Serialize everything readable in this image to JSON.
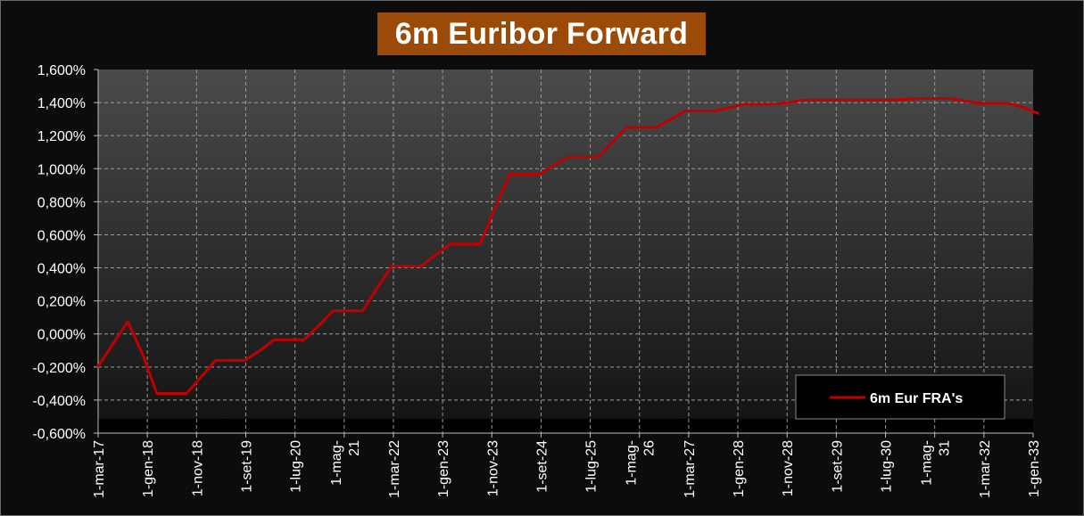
{
  "title": "6m Euribor Forward",
  "chart_data": {
    "type": "line",
    "title": "6m Euribor Forward",
    "xlabel": "",
    "ylabel": "",
    "ylim": [
      -0.6,
      1.6
    ],
    "yticks": [
      "1,600%",
      "1,400%",
      "1,200%",
      "1,000%",
      "0,800%",
      "0,600%",
      "0,400%",
      "0,200%",
      "0,000%",
      "-0,200%",
      "-0,400%",
      "-0,600%"
    ],
    "xticks": [
      [
        "1-mar-17"
      ],
      [
        "1-gen-18"
      ],
      [
        "1-nov-18"
      ],
      [
        "1-set-19"
      ],
      [
        "1-lug-20"
      ],
      [
        "1-mag-",
        "21"
      ],
      [
        "1-mar-22"
      ],
      [
        "1-gen-23"
      ],
      [
        "1-nov-23"
      ],
      [
        "1-set-24"
      ],
      [
        "1-lug-25"
      ],
      [
        "1-mag-",
        "26"
      ],
      [
        "1-mar-27"
      ],
      [
        "1-gen-28"
      ],
      [
        "1-nov-28"
      ],
      [
        "1-set-29"
      ],
      [
        "1-lug-30"
      ],
      [
        "1-mag-",
        "31"
      ],
      [
        "1-mar-32"
      ],
      [
        "1-gen-33"
      ]
    ],
    "grid": true,
    "legend_position": "bottom-right",
    "series": [
      {
        "name": "6m Eur FRA's",
        "color": "#c00000",
        "x": [
          "2017-03-01",
          "2017-06-01",
          "2017-09-01",
          "2017-12-01",
          "2018-03-01",
          "2018-06-01",
          "2018-09-01",
          "2018-12-01",
          "2019-03-01",
          "2019-06-01",
          "2019-09-01",
          "2019-12-01",
          "2020-03-01",
          "2020-06-01",
          "2020-09-01",
          "2020-12-01",
          "2021-03-01",
          "2021-06-01",
          "2021-09-01",
          "2021-12-01",
          "2022-03-01",
          "2022-06-01",
          "2022-09-01",
          "2022-12-01",
          "2023-03-01",
          "2023-06-01",
          "2023-09-01",
          "2023-12-01",
          "2024-03-01",
          "2024-06-01",
          "2024-09-01",
          "2024-12-01",
          "2025-03-01",
          "2025-06-01",
          "2025-09-01",
          "2025-12-01",
          "2026-03-01",
          "2026-06-01",
          "2026-09-01",
          "2026-12-01",
          "2027-03-01",
          "2027-06-01",
          "2027-09-01",
          "2027-12-01",
          "2028-03-01",
          "2028-06-01",
          "2028-09-01",
          "2028-12-01",
          "2029-03-01",
          "2029-06-01",
          "2029-09-01",
          "2029-12-01",
          "2030-03-01",
          "2030-06-01",
          "2030-09-01",
          "2030-12-01",
          "2031-03-01",
          "2031-06-01",
          "2031-09-01",
          "2031-12-01",
          "2032-03-01",
          "2032-06-01",
          "2032-09-01",
          "2032-12-01",
          "2033-03-01"
        ],
        "values": [
          -0.195,
          -0.06,
          0.075,
          -0.12,
          -0.36,
          -0.36,
          -0.36,
          -0.26,
          -0.16,
          -0.16,
          -0.16,
          -0.1,
          -0.035,
          -0.035,
          -0.035,
          0.05,
          0.14,
          0.14,
          0.14,
          0.28,
          0.41,
          0.41,
          0.41,
          0.48,
          0.545,
          0.545,
          0.545,
          0.755,
          0.965,
          0.965,
          0.965,
          1.02,
          1.07,
          1.07,
          1.07,
          1.16,
          1.25,
          1.25,
          1.25,
          1.3,
          1.35,
          1.35,
          1.35,
          1.37,
          1.39,
          1.39,
          1.39,
          1.4,
          1.415,
          1.415,
          1.415,
          1.415,
          1.415,
          1.415,
          1.415,
          1.42,
          1.425,
          1.425,
          1.425,
          1.41,
          1.395,
          1.395,
          1.395,
          1.37,
          1.335
        ]
      }
    ]
  }
}
